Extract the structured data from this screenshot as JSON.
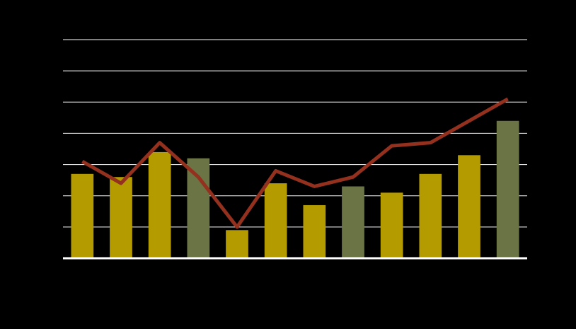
{
  "chart_data": {
    "type": "bar",
    "categories": [
      null,
      null,
      null,
      null,
      null,
      null,
      null,
      null,
      null,
      null,
      null,
      null
    ],
    "series": [
      {
        "type": "bar",
        "colors": [
          "#b39b00",
          "#b39b00",
          "#b39b00",
          "#6b7444",
          "#b39b00",
          "#b39b00",
          "#b39b00",
          "#6b7444",
          "#b39b00",
          "#b39b00",
          "#b39b00",
          "#6b7444"
        ],
        "values": [
          2.7,
          2.6,
          3.4,
          3.2,
          0.9,
          2.4,
          1.7,
          2.3,
          2.1,
          2.7,
          3.3,
          4.4
        ]
      },
      {
        "type": "line",
        "color": "#93301e",
        "values": [
          3.1,
          2.4,
          3.7,
          2.6,
          1.0,
          2.8,
          2.3,
          2.6,
          3.6,
          3.7,
          4.4,
          5.1
        ]
      }
    ],
    "ylim": [
      0,
      7
    ],
    "yticks": [
      0,
      1,
      2,
      3,
      4,
      5,
      6,
      7
    ],
    "grid": true
  }
}
